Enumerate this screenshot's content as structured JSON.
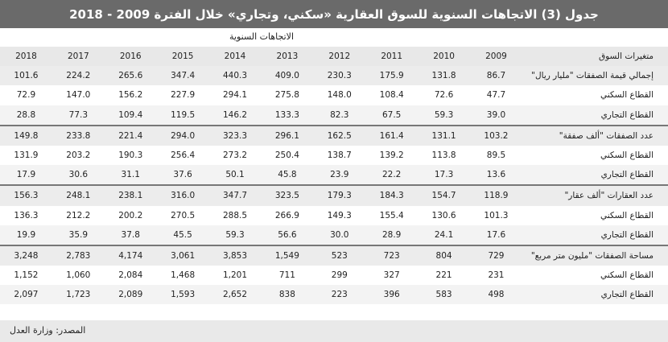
{
  "title": "جدول (3) الاتجاهات السنوية للسوق العقارية «سكني، وتجاري» خلال الفترة 2009 - 2018",
  "subheading": "الاتجاهات السنوية",
  "header": {
    "label": "متغيرات السوق",
    "years": [
      "2018",
      "2017",
      "2016",
      "2015",
      "2014",
      "2013",
      "2012",
      "2011",
      "2010",
      "2009"
    ]
  },
  "rows": [
    {
      "label": "إجمالي قيمة الصفقات \"مليار ريال\"",
      "kind": "group",
      "values": [
        "101.6",
        "224.2",
        "265.6",
        "347.4",
        "440.3",
        "409.0",
        "230.3",
        "175.9",
        "131.8",
        "86.7"
      ]
    },
    {
      "label": "القطاع السكني",
      "kind": "sub",
      "values": [
        "72.9",
        "147.0",
        "156.2",
        "227.9",
        "294.1",
        "275.8",
        "148.0",
        "108.4",
        "72.6",
        "47.7"
      ]
    },
    {
      "label": "القطاع التجاري",
      "kind": "sub",
      "values": [
        "28.8",
        "77.3",
        "109.4",
        "119.5",
        "146.2",
        "133.3",
        "82.3",
        "67.5",
        "59.3",
        "39.0"
      ]
    },
    {
      "label": "عدد الصفقات \"ألف صفقة\"",
      "kind": "group",
      "values": [
        "149.8",
        "233.8",
        "221.4",
        "294.0",
        "323.3",
        "296.1",
        "162.5",
        "161.4",
        "131.1",
        "103.2"
      ]
    },
    {
      "label": "القطاع السكني",
      "kind": "sub",
      "values": [
        "131.9",
        "203.2",
        "190.3",
        "256.4",
        "273.2",
        "250.4",
        "138.7",
        "139.2",
        "113.8",
        "89.5"
      ]
    },
    {
      "label": "القطاع التجاري",
      "kind": "sub",
      "values": [
        "17.9",
        "30.6",
        "31.1",
        "37.6",
        "50.1",
        "45.8",
        "23.9",
        "22.2",
        "17.3",
        "13.6"
      ]
    },
    {
      "label": "عدد العقارات \"ألف عقار\"",
      "kind": "group",
      "values": [
        "156.3",
        "248.1",
        "238.1",
        "316.0",
        "347.7",
        "323.5",
        "179.3",
        "184.3",
        "154.7",
        "118.9"
      ]
    },
    {
      "label": "القطاع السكني",
      "kind": "sub",
      "values": [
        "136.3",
        "212.2",
        "200.2",
        "270.5",
        "288.5",
        "266.9",
        "149.3",
        "155.4",
        "130.6",
        "101.3"
      ]
    },
    {
      "label": "القطاع التجاري",
      "kind": "sub",
      "values": [
        "19.9",
        "35.9",
        "37.8",
        "45.5",
        "59.3",
        "56.6",
        "30.0",
        "28.9",
        "24.1",
        "17.6"
      ]
    },
    {
      "label": "مساحة الصفقات \"مليون متر مربع\"",
      "kind": "group",
      "values": [
        "3,248",
        "2,783",
        "4,174",
        "3,061",
        "3,853",
        "1,549",
        "523",
        "723",
        "804",
        "729"
      ]
    },
    {
      "label": "القطاع السكني",
      "kind": "sub",
      "values": [
        "1,152",
        "1,060",
        "2,084",
        "1,468",
        "1,201",
        "711",
        "299",
        "327",
        "221",
        "231"
      ]
    },
    {
      "label": "القطاع التجاري",
      "kind": "sub",
      "values": [
        "2,097",
        "1,723",
        "2,089",
        "1,593",
        "2,652",
        "838",
        "223",
        "396",
        "583",
        "498"
      ]
    }
  ],
  "footer": "المصدر: وزارة العدل"
}
